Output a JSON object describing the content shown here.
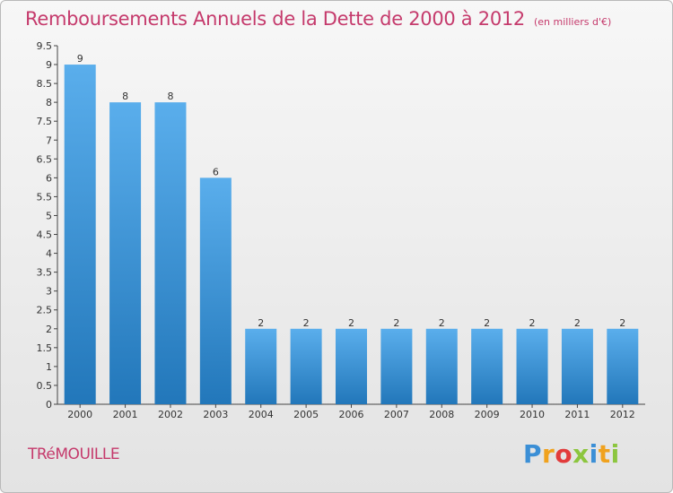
{
  "header": {
    "title": "Remboursements Annuels de la Dette de 2000 à 2012",
    "unit": "(en milliers d'€)"
  },
  "footer": {
    "commune": "TRéMOUILLE",
    "logo": [
      {
        "ch": "P",
        "color": "#3b8fd6"
      },
      {
        "ch": "r",
        "color": "#f0a21e"
      },
      {
        "ch": "o",
        "color": "#e23b3b"
      },
      {
        "ch": "x",
        "color": "#8cc63f"
      },
      {
        "ch": "i",
        "color": "#3b8fd6"
      },
      {
        "ch": "t",
        "color": "#f0a21e"
      },
      {
        "ch": "i",
        "color": "#8cc63f"
      }
    ]
  },
  "colors": {
    "bar_top": "#5aaeec",
    "bar_bottom": "#2277ba",
    "accent": "#c53a6c"
  },
  "chart_data": {
    "type": "bar",
    "categories": [
      "2000",
      "2001",
      "2002",
      "2003",
      "2004",
      "2005",
      "2006",
      "2007",
      "2008",
      "2009",
      "2010",
      "2011",
      "2012"
    ],
    "values": [
      9,
      8,
      8,
      6,
      2,
      2,
      2,
      2,
      2,
      2,
      2,
      2,
      2
    ],
    "data_labels": [
      "9",
      "8",
      "8",
      "6",
      "2",
      "2",
      "2",
      "2",
      "2",
      "2",
      "2",
      "2",
      "2"
    ],
    "y_ticks": [
      0,
      0.5,
      1,
      1.5,
      2,
      2.5,
      3,
      3.5,
      4,
      4.5,
      5,
      5.5,
      6,
      6.5,
      7,
      7.5,
      8,
      8.5,
      9,
      9.5
    ],
    "y_tick_labels": [
      "0",
      "0.5",
      "1",
      "1.5",
      "2",
      "2.5",
      "3",
      "3.5",
      "4",
      "4.5",
      "5",
      "5.5",
      "6",
      "6.5",
      "7",
      "7.5",
      "8",
      "8.5",
      "9",
      "9.5"
    ],
    "ylim": [
      0,
      9.5
    ],
    "xlabel": "",
    "ylabel": "",
    "grid": false,
    "legend": "none"
  }
}
